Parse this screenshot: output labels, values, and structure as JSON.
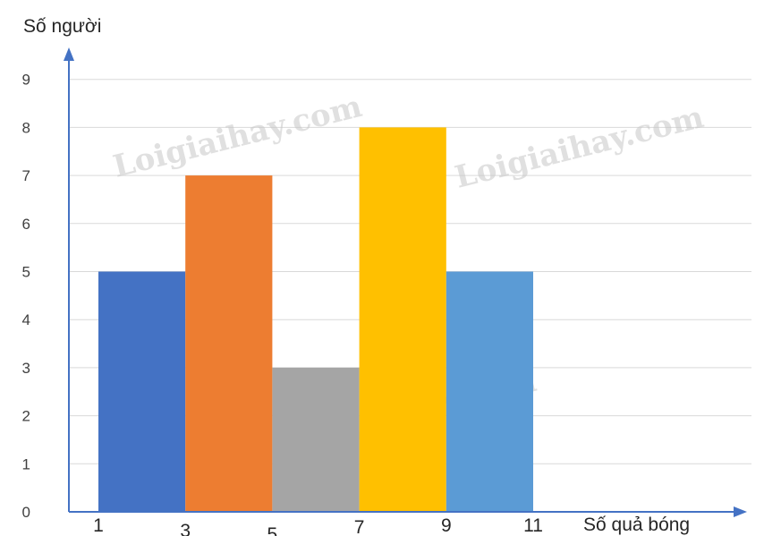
{
  "chart_data": {
    "type": "bar",
    "histogram": true,
    "ylabel": "Số người",
    "xlabel": "Số quả bóng",
    "x_ticks": [
      "1",
      "3",
      "5",
      "7",
      "9",
      "11"
    ],
    "y_ticks": [
      "0",
      "1",
      "2",
      "3",
      "4",
      "5",
      "6",
      "7",
      "8",
      "9"
    ],
    "ylim": [
      0,
      9
    ],
    "xlim": [
      1,
      11
    ],
    "grid": true,
    "bins": [
      {
        "start": 1,
        "end": 3,
        "value": 5,
        "color": "#4472c4"
      },
      {
        "start": 3,
        "end": 5,
        "value": 7,
        "color": "#ed7d31"
      },
      {
        "start": 5,
        "end": 7,
        "value": 3,
        "color": "#a5a5a5"
      },
      {
        "start": 7,
        "end": 9,
        "value": 8,
        "color": "#ffc000"
      },
      {
        "start": 9,
        "end": 11,
        "value": 5,
        "color": "#5b9bd5"
      }
    ]
  },
  "watermark": "Loigiaihay.com",
  "colors": {
    "axis": "#4472c4",
    "grid": "#d9d9d9"
  }
}
